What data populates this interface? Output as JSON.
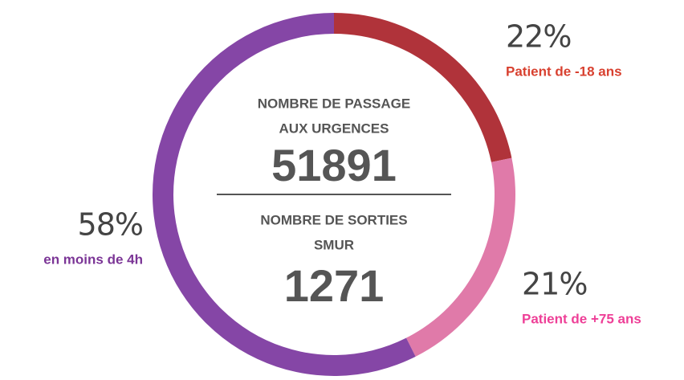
{
  "chart_data": {
    "type": "donut",
    "categories": [
      "Patient de -18 ans",
      "Patient de +75 ans",
      "en moins de 4h"
    ],
    "values": [
      22,
      21,
      58
    ],
    "value_labels": [
      "22%",
      "21%",
      "58%"
    ],
    "colors": [
      "#b0333a",
      "#e07aa9",
      "#8546a6"
    ],
    "label_colors": [
      "#d8402f",
      "#ee3f97",
      "#7b3596"
    ],
    "center": [
      {
        "lines": [
          "NOMBRE DE PASSAGE",
          "AUX URGENCES"
        ],
        "value": 51891
      },
      {
        "lines": [
          "NOMBRE DE SORTIES",
          "SMUR"
        ],
        "value": 1271
      }
    ]
  }
}
